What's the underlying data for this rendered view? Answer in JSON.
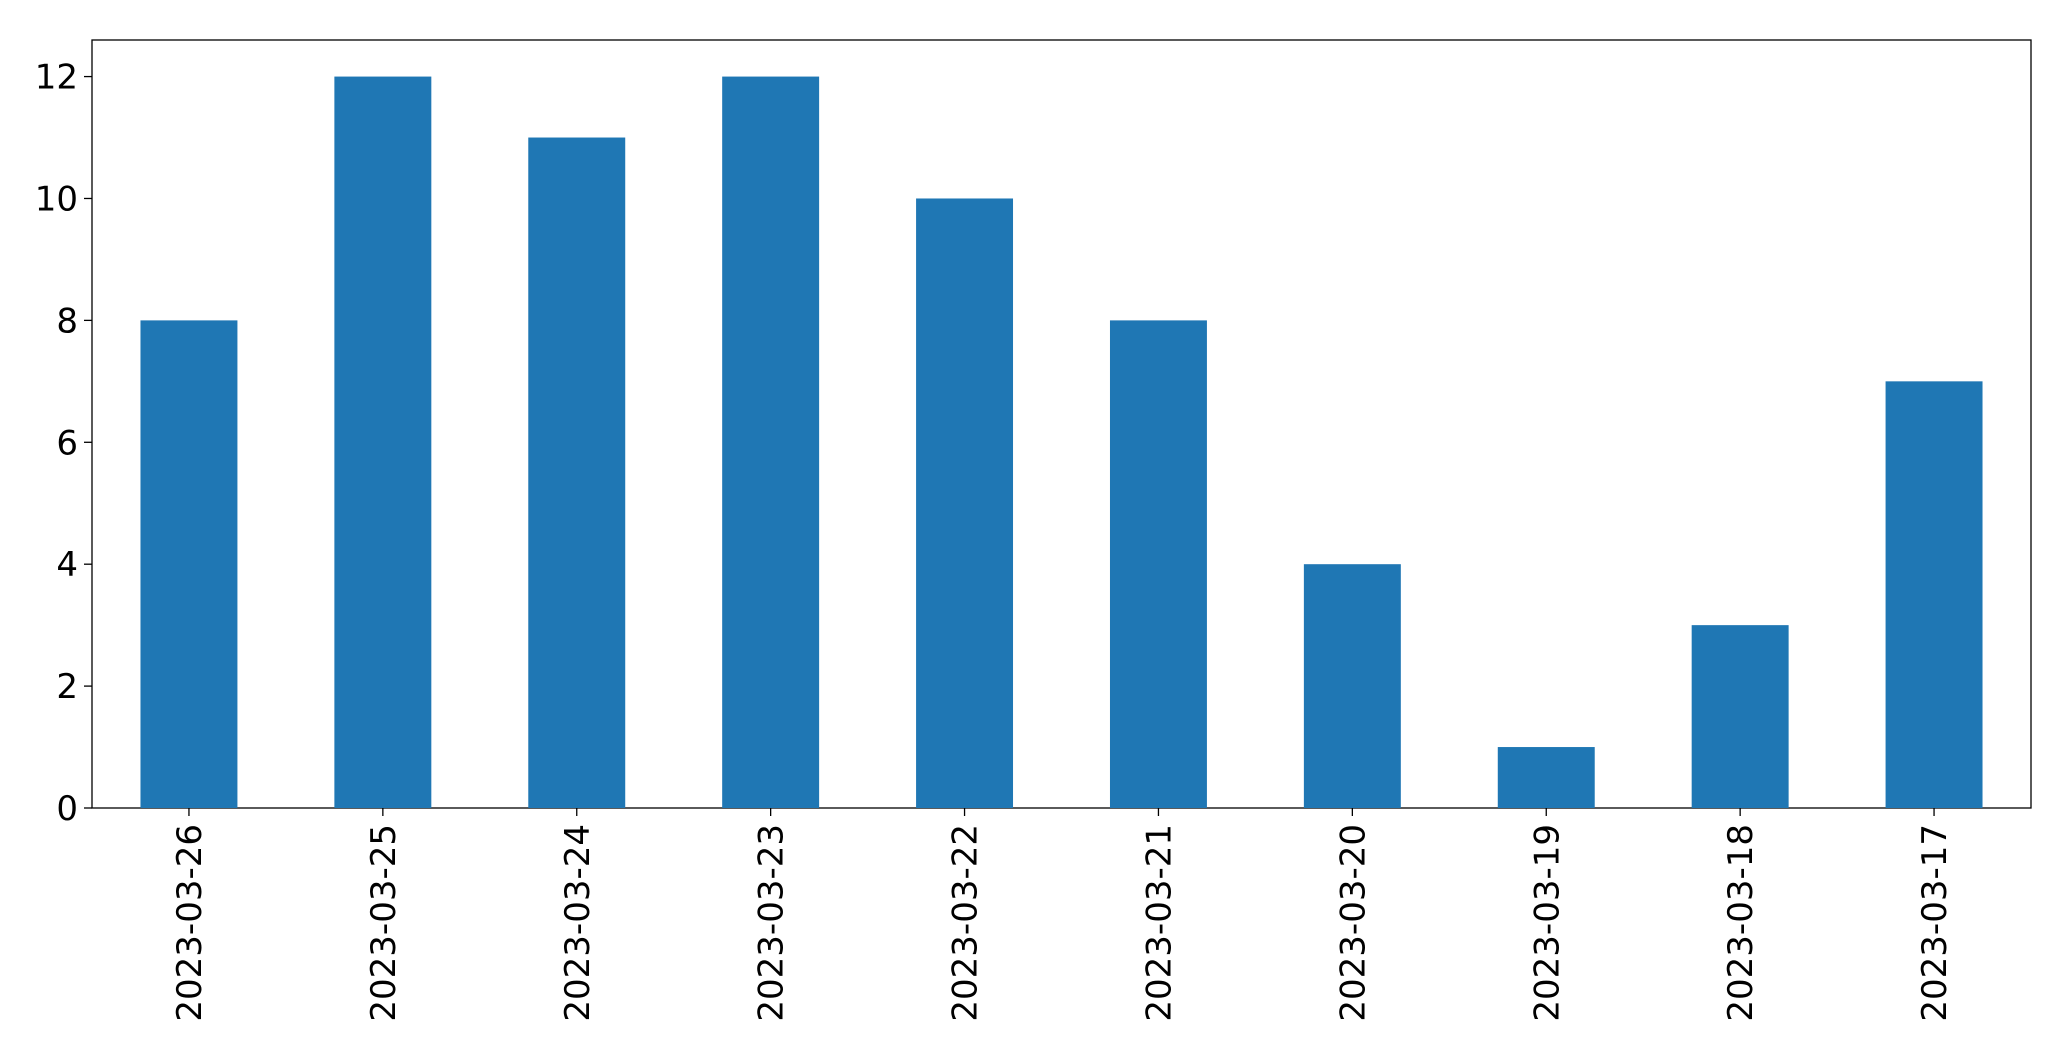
{
  "chart_data": {
    "type": "bar",
    "categories": [
      "2023-03-26",
      "2023-03-25",
      "2023-03-24",
      "2023-03-23",
      "2023-03-22",
      "2023-03-21",
      "2023-03-20",
      "2023-03-19",
      "2023-03-18",
      "2023-03-17"
    ],
    "values": [
      8,
      12,
      11,
      12,
      10,
      8,
      4,
      1,
      3,
      7
    ],
    "color": "#1f77b4",
    "ylim": [
      0,
      12.6
    ],
    "yticks": [
      0,
      2,
      4,
      6,
      8,
      10,
      12
    ],
    "grid": false
  }
}
